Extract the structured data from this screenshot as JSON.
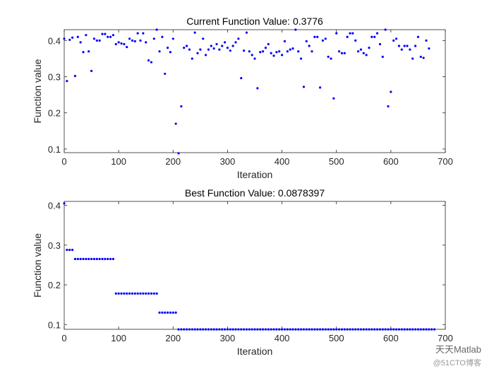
{
  "chart_data": [
    {
      "type": "scatter",
      "title": "Current Function Value: 0.3776",
      "xlabel": "Iteration",
      "ylabel": "Function value",
      "xlim": [
        0,
        700
      ],
      "ylim": [
        0.09,
        0.43
      ],
      "xticks": [
        0,
        100,
        200,
        300,
        400,
        500,
        600,
        700
      ],
      "yticks": [
        0.1,
        0.2,
        0.3,
        0.4
      ],
      "grid": false,
      "series": [
        {
          "color": "#0000ff",
          "points": [
            [
              0,
              0.405
            ],
            [
              5,
              0.288
            ],
            [
              10,
              0.402
            ],
            [
              15,
              0.408
            ],
            [
              20,
              0.302
            ],
            [
              25,
              0.41
            ],
            [
              30,
              0.395
            ],
            [
              35,
              0.368
            ],
            [
              40,
              0.415
            ],
            [
              45,
              0.37
            ],
            [
              50,
              0.316
            ],
            [
              55,
              0.405
            ],
            [
              60,
              0.4
            ],
            [
              65,
              0.4
            ],
            [
              70,
              0.418
            ],
            [
              75,
              0.418
            ],
            [
              80,
              0.41
            ],
            [
              85,
              0.41
            ],
            [
              90,
              0.415
            ],
            [
              95,
              0.39
            ],
            [
              100,
              0.395
            ],
            [
              105,
              0.392
            ],
            [
              110,
              0.39
            ],
            [
              115,
              0.382
            ],
            [
              120,
              0.405
            ],
            [
              125,
              0.4
            ],
            [
              130,
              0.398
            ],
            [
              135,
              0.42
            ],
            [
              140,
              0.4
            ],
            [
              145,
              0.42
            ],
            [
              150,
              0.395
            ],
            [
              155,
              0.345
            ],
            [
              160,
              0.34
            ],
            [
              165,
              0.405
            ],
            [
              170,
              0.43
            ],
            [
              175,
              0.37
            ],
            [
              180,
              0.41
            ],
            [
              185,
              0.308
            ],
            [
              190,
              0.38
            ],
            [
              195,
              0.368
            ],
            [
              200,
              0.405
            ],
            [
              205,
              0.17
            ],
            [
              210,
              0.088
            ],
            [
              215,
              0.218
            ],
            [
              220,
              0.38
            ],
            [
              225,
              0.385
            ],
            [
              230,
              0.375
            ],
            [
              235,
              0.35
            ],
            [
              240,
              0.422
            ],
            [
              245,
              0.365
            ],
            [
              250,
              0.375
            ],
            [
              255,
              0.405
            ],
            [
              260,
              0.36
            ],
            [
              265,
              0.375
            ],
            [
              270,
              0.385
            ],
            [
              275,
              0.378
            ],
            [
              280,
              0.39
            ],
            [
              285,
              0.375
            ],
            [
              290,
              0.385
            ],
            [
              295,
              0.395
            ],
            [
              300,
              0.38
            ],
            [
              305,
              0.372
            ],
            [
              310,
              0.385
            ],
            [
              315,
              0.395
            ],
            [
              320,
              0.405
            ],
            [
              325,
              0.296
            ],
            [
              330,
              0.372
            ],
            [
              335,
              0.422
            ],
            [
              340,
              0.37
            ],
            [
              345,
              0.36
            ],
            [
              350,
              0.35
            ],
            [
              355,
              0.268
            ],
            [
              360,
              0.368
            ],
            [
              365,
              0.37
            ],
            [
              370,
              0.38
            ],
            [
              375,
              0.39
            ],
            [
              380,
              0.365
            ],
            [
              385,
              0.358
            ],
            [
              390,
              0.368
            ],
            [
              395,
              0.37
            ],
            [
              400,
              0.36
            ],
            [
              405,
              0.398
            ],
            [
              410,
              0.37
            ],
            [
              415,
              0.375
            ],
            [
              420,
              0.378
            ],
            [
              425,
              0.43
            ],
            [
              430,
              0.37
            ],
            [
              435,
              0.35
            ],
            [
              440,
              0.272
            ],
            [
              445,
              0.398
            ],
            [
              450,
              0.385
            ],
            [
              455,
              0.37
            ],
            [
              460,
              0.41
            ],
            [
              465,
              0.41
            ],
            [
              470,
              0.27
            ],
            [
              475,
              0.4
            ],
            [
              480,
              0.405
            ],
            [
              485,
              0.355
            ],
            [
              490,
              0.35
            ],
            [
              495,
              0.24
            ],
            [
              500,
              0.42
            ],
            [
              505,
              0.37
            ],
            [
              510,
              0.365
            ],
            [
              515,
              0.365
            ],
            [
              520,
              0.41
            ],
            [
              525,
              0.42
            ],
            [
              530,
              0.42
            ],
            [
              535,
              0.4
            ],
            [
              540,
              0.37
            ],
            [
              545,
              0.375
            ],
            [
              550,
              0.365
            ],
            [
              555,
              0.36
            ],
            [
              560,
              0.38
            ],
            [
              565,
              0.41
            ],
            [
              570,
              0.41
            ],
            [
              575,
              0.42
            ],
            [
              580,
              0.39
            ],
            [
              585,
              0.355
            ],
            [
              590,
              0.43
            ],
            [
              595,
              0.218
            ],
            [
              600,
              0.258
            ],
            [
              605,
              0.4
            ],
            [
              610,
              0.405
            ],
            [
              615,
              0.385
            ],
            [
              620,
              0.375
            ],
            [
              625,
              0.385
            ],
            [
              630,
              0.385
            ],
            [
              635,
              0.375
            ],
            [
              640,
              0.35
            ],
            [
              645,
              0.385
            ],
            [
              650,
              0.41
            ],
            [
              655,
              0.355
            ],
            [
              660,
              0.352
            ],
            [
              665,
              0.4
            ],
            [
              670,
              0.378
            ]
          ]
        }
      ]
    },
    {
      "type": "scatter",
      "title": "Best Function Value: 0.0878397",
      "xlabel": "Iteration",
      "ylabel": "Function value",
      "xlim": [
        0,
        700
      ],
      "ylim": [
        0.088,
        0.41
      ],
      "xticks": [
        0,
        100,
        200,
        300,
        400,
        500,
        600,
        700
      ],
      "yticks": [
        0.1,
        0.2,
        0.3,
        0.4
      ],
      "grid": false,
      "series": [
        {
          "color": "#0000ff",
          "steps": [
            {
              "from": 0,
              "to": 0,
              "value": 0.405
            },
            {
              "from": 5,
              "to": 15,
              "value": 0.288
            },
            {
              "from": 20,
              "to": 90,
              "value": 0.265
            },
            {
              "from": 95,
              "to": 170,
              "value": 0.178
            },
            {
              "from": 175,
              "to": 205,
              "value": 0.13
            },
            {
              "from": 210,
              "to": 680,
              "value": 0.0878397
            }
          ],
          "step_interval": 5
        }
      ]
    }
  ],
  "watermark": {
    "line1": "天天Matlab",
    "line2": "@51CTO博客"
  }
}
